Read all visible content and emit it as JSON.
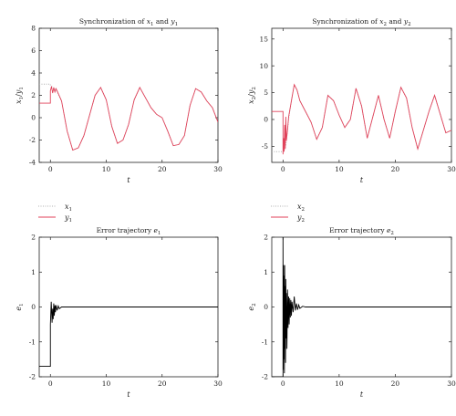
{
  "chart_data": [
    {
      "type": "line",
      "title": "Synchronization of x_1 and y_1",
      "title_main": "Synchronization of ",
      "title_v1": "x",
      "title_s1": "1",
      "title_and": " and ",
      "title_v2": "y",
      "title_s2": "1",
      "xlabel": "t",
      "ylabel": "x_1/y_1",
      "ylabel_parts": [
        "x",
        "1",
        "/",
        "y",
        "1"
      ],
      "xlim": [
        -2,
        30
      ],
      "ylim": [
        -4,
        8
      ],
      "xticks": [
        "0",
        "10",
        "20",
        "30"
      ],
      "yticks": [
        "-4",
        "-2",
        "0",
        "2",
        "4",
        "6",
        "8"
      ],
      "x_ticks_values": [
        0,
        10,
        20,
        30
      ],
      "y_ticks_values": [
        -4,
        -2,
        0,
        2,
        4,
        6,
        8
      ],
      "legend": [
        {
          "name": "x",
          "sub": "1",
          "style": "dotted",
          "color": "#b0b0b0"
        },
        {
          "name": "y",
          "sub": "1",
          "style": "solid",
          "color": "#e0425a"
        }
      ],
      "series": [
        {
          "name": "x1",
          "color": "#b0b0b0",
          "style": "dotted",
          "x": [
            -2,
            0,
            0,
            0.5,
            1,
            2,
            3,
            4,
            5,
            6,
            7,
            8,
            9,
            10,
            11,
            12,
            13,
            14,
            15,
            16,
            17,
            18,
            19,
            20,
            21,
            22,
            23,
            24,
            25,
            26,
            27,
            28,
            29,
            30
          ],
          "y": [
            3,
            3,
            2.9,
            2.7,
            2.5,
            1.5,
            -1.2,
            -2.9,
            -2.7,
            -1.6,
            0.2,
            2.0,
            2.7,
            1.6,
            -0.8,
            -2.3,
            -2.0,
            -0.6,
            1.6,
            2.7,
            1.8,
            0.9,
            0.3,
            0.0,
            -1.2,
            -2.5,
            -2.4,
            -1.6,
            1.1,
            2.6,
            2.3,
            1.5,
            0.9,
            -0.4
          ]
        },
        {
          "name": "y1",
          "color": "#e0425a",
          "style": "solid",
          "x": [
            -2,
            0,
            0,
            0.2,
            0.4,
            0.6,
            0.8,
            1,
            1.2,
            2,
            3,
            4,
            5,
            6,
            7,
            8,
            9,
            10,
            11,
            12,
            13,
            14,
            15,
            16,
            17,
            18,
            19,
            20,
            21,
            22,
            23,
            24,
            25,
            26,
            27,
            28,
            29,
            30
          ],
          "y": [
            1.3,
            1.3,
            2.4,
            2.8,
            2.2,
            2.7,
            2.3,
            2.6,
            2.4,
            1.5,
            -1.2,
            -2.9,
            -2.7,
            -1.6,
            0.2,
            2.0,
            2.7,
            1.6,
            -0.8,
            -2.3,
            -2.0,
            -0.6,
            1.6,
            2.7,
            1.8,
            0.9,
            0.3,
            0.0,
            -1.2,
            -2.5,
            -2.4,
            -1.6,
            1.1,
            2.6,
            2.3,
            1.5,
            0.9,
            -0.4
          ]
        }
      ]
    },
    {
      "type": "line",
      "title": "Synchronization of x_2 and y_2",
      "title_main": "Synchronization of ",
      "title_v1": "x",
      "title_s1": "2",
      "title_and": " and ",
      "title_v2": "y",
      "title_s2": "2",
      "xlabel": "t",
      "ylabel": "x_2/y_2",
      "ylabel_parts": [
        "x",
        "2",
        "/",
        "y",
        "2"
      ],
      "xlim": [
        -2,
        30
      ],
      "ylim": [
        -8,
        17
      ],
      "xticks": [
        "0",
        "10",
        "20",
        "30"
      ],
      "yticks": [
        "-5",
        "0",
        "5",
        "10",
        "15"
      ],
      "x_ticks_values": [
        0,
        10,
        20,
        30
      ],
      "y_ticks_values": [
        -5,
        0,
        5,
        10,
        15
      ],
      "legend": [
        {
          "name": "x",
          "sub": "2",
          "style": "dotted",
          "color": "#b0b0b0"
        },
        {
          "name": "y",
          "sub": "2",
          "style": "solid",
          "color": "#e0425a"
        }
      ],
      "series": [
        {
          "name": "x2",
          "color": "#b0b0b0",
          "style": "dotted",
          "x": [
            -2,
            0,
            0,
            0.5,
            1,
            1.5,
            2,
            2.5,
            3,
            4,
            5,
            6,
            7,
            8,
            9,
            10,
            11,
            12,
            13,
            14,
            15,
            16,
            17,
            18,
            19,
            20,
            21,
            22,
            23,
            24,
            25,
            26,
            27,
            28,
            29,
            30
          ],
          "y": [
            -6,
            -6,
            -6,
            -5,
            0,
            3.5,
            6.5,
            5.5,
            3.5,
            1.5,
            -0.5,
            -3.7,
            -1.5,
            4.5,
            3.5,
            0.8,
            -1.5,
            0.0,
            5.8,
            2.5,
            -3.5,
            0.5,
            4.5,
            0.0,
            -3.5,
            1.5,
            6.0,
            4.0,
            -1.5,
            -5.5,
            -2.0,
            1.5,
            4.5,
            1.0,
            -2.5,
            -2.0
          ]
        },
        {
          "name": "y2",
          "color": "#e0425a",
          "style": "solid",
          "x": [
            -2,
            0,
            0,
            0.1,
            0.2,
            0.3,
            0.4,
            0.5,
            0.6,
            0.8,
            1,
            1.5,
            2,
            2.5,
            3,
            4,
            5,
            6,
            7,
            8,
            9,
            10,
            11,
            12,
            13,
            14,
            15,
            16,
            17,
            18,
            19,
            20,
            21,
            22,
            23,
            24,
            25,
            26,
            27,
            28,
            29,
            30
          ],
          "y": [
            1.5,
            1.5,
            -6.5,
            -3.5,
            -6.0,
            -1.0,
            -5.5,
            0.5,
            -4.0,
            -2.0,
            0.5,
            3.5,
            6.5,
            5.5,
            3.5,
            1.5,
            -0.5,
            -3.7,
            -1.5,
            4.5,
            3.5,
            0.8,
            -1.5,
            0.0,
            5.8,
            2.5,
            -3.5,
            0.5,
            4.5,
            0.0,
            -3.5,
            1.5,
            6.0,
            4.0,
            -1.5,
            -5.5,
            -2.0,
            1.5,
            4.5,
            1.0,
            -2.5,
            -2.0
          ]
        }
      ]
    },
    {
      "type": "line",
      "title": "Error trajectory e_1",
      "title_main": "Error trajectory ",
      "title_v1": "e",
      "title_s1": "1",
      "xlabel": "t",
      "ylabel": "e_1",
      "ylabel_parts": [
        "e",
        "1"
      ],
      "xlim": [
        -2,
        30
      ],
      "ylim": [
        -2,
        2
      ],
      "xticks": [
        "0",
        "10",
        "20",
        "30"
      ],
      "yticks": [
        "-2",
        "-1",
        "0",
        "1",
        "2"
      ],
      "x_ticks_values": [
        0,
        10,
        20,
        30
      ],
      "y_ticks_values": [
        -2,
        -1,
        0,
        1,
        2
      ],
      "series": [
        {
          "name": "e1",
          "color": "#000000",
          "style": "solid",
          "x": [
            -2,
            0,
            0,
            0.15,
            0.3,
            0.4,
            0.5,
            0.6,
            0.7,
            0.8,
            0.9,
            1.0,
            1.2,
            1.4,
            1.6,
            2,
            3,
            30
          ],
          "y": [
            -1.7,
            -1.7,
            -0.5,
            0.15,
            -0.45,
            -0.05,
            -0.35,
            0.1,
            -0.25,
            0.05,
            -0.15,
            0.05,
            -0.1,
            0.03,
            -0.05,
            0.0,
            0.0,
            0.0
          ]
        }
      ]
    },
    {
      "type": "line",
      "title": "Error trajectory e_2",
      "title_main": "Error trajectory ",
      "title_v1": "e",
      "title_s1": "2",
      "xlabel": "t",
      "ylabel": "e_2",
      "ylabel_parts": [
        "e",
        "2"
      ],
      "xlim": [
        -2,
        30
      ],
      "ylim": [
        -2,
        2
      ],
      "xticks": [
        "0",
        "10",
        "20",
        "30"
      ],
      "yticks": [
        "-2",
        "-1",
        "0",
        "1",
        "2"
      ],
      "x_ticks_values": [
        0,
        10,
        20,
        30
      ],
      "y_ticks_values": [
        -2,
        -1,
        0,
        1,
        2
      ],
      "series": [
        {
          "name": "e2",
          "color": "#000000",
          "style": "solid",
          "x": [
            -2,
            0,
            0,
            0.05,
            0.1,
            0.15,
            0.2,
            0.25,
            0.3,
            0.35,
            0.4,
            0.45,
            0.5,
            0.55,
            0.6,
            0.7,
            0.8,
            0.9,
            1.0,
            1.1,
            1.2,
            1.3,
            1.4,
            1.5,
            1.6,
            1.8,
            2.0,
            2.2,
            2.4,
            2.6,
            2.8,
            3.0,
            3.5,
            4,
            30
          ],
          "y": [
            -2,
            -2,
            2,
            -1.8,
            1.2,
            -1.5,
            0.9,
            -1.9,
            1.2,
            -1.2,
            0.6,
            -1.6,
            0.8,
            -0.9,
            0.4,
            -1.2,
            0.5,
            -0.6,
            0.3,
            -0.5,
            0.25,
            -0.3,
            0.2,
            -0.25,
            0.15,
            -0.15,
            0.3,
            -0.1,
            0.1,
            -0.08,
            0.06,
            -0.04,
            0.02,
            0.0,
            0.0
          ]
        }
      ]
    }
  ]
}
